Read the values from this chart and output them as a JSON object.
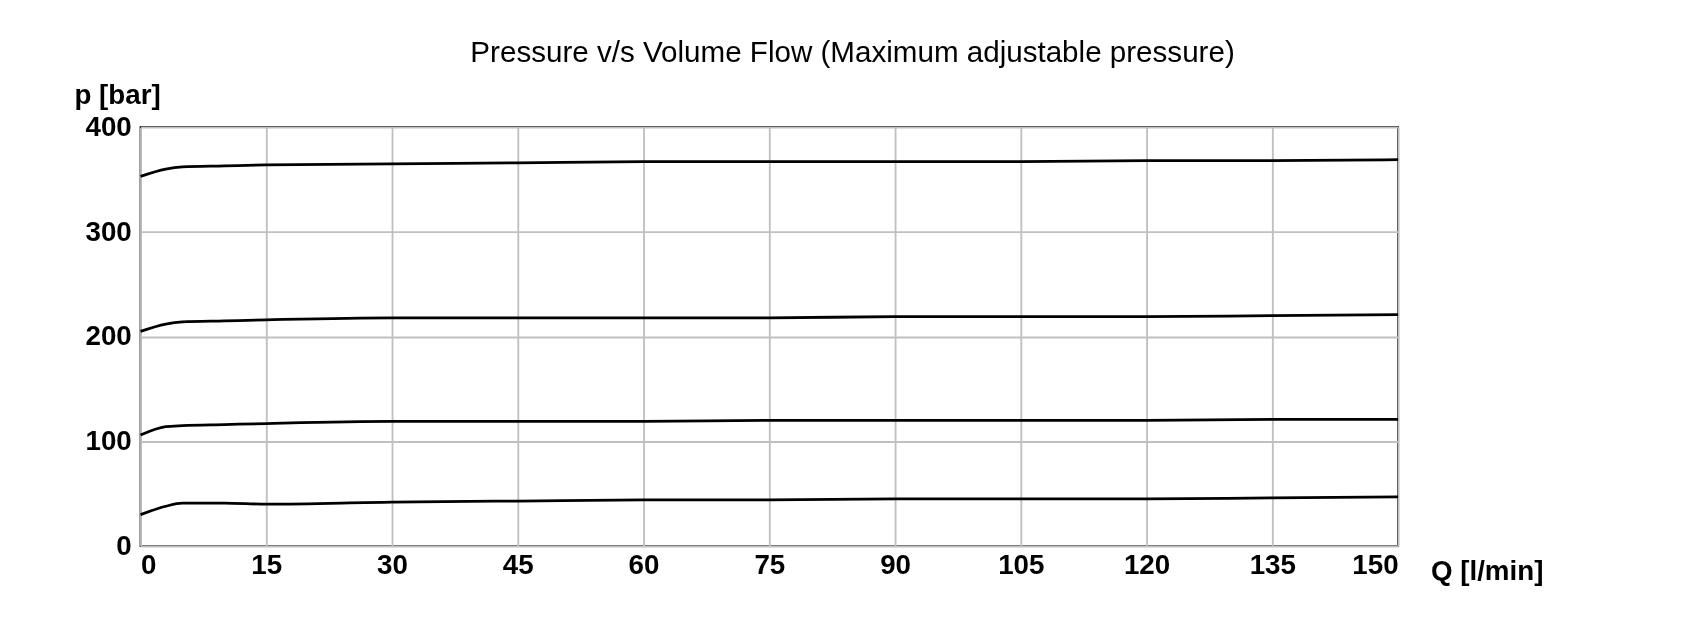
{
  "chart_data": {
    "type": "line",
    "title": "Pressure v/s Volume Flow (Maximum adjustable pressure)",
    "xlabel": "Q [l/min]",
    "ylabel": "p [bar]",
    "x": [
      0,
      3,
      5,
      10,
      15,
      30,
      45,
      60,
      75,
      90,
      105,
      120,
      135,
      150
    ],
    "series": [
      {
        "color": "#000000",
        "values": [
          353,
          360,
          362,
          363,
          364,
          365,
          366,
          367,
          367,
          367,
          367,
          368,
          368,
          369
        ]
      },
      {
        "color": "#000000",
        "values": [
          205,
          212,
          214,
          215,
          216,
          218,
          218,
          218,
          218,
          219,
          219,
          219,
          220,
          221
        ]
      },
      {
        "color": "#000000",
        "values": [
          106,
          114,
          115,
          116,
          117,
          119,
          119,
          119,
          120,
          120,
          120,
          120,
          121,
          121
        ]
      },
      {
        "color": "#000000",
        "values": [
          30,
          38,
          41,
          41,
          40,
          42,
          43,
          44,
          44,
          45,
          45,
          45,
          46,
          47
        ]
      }
    ],
    "xlim": [
      0,
      150
    ],
    "ylim": [
      0,
      400
    ],
    "xticks": [
      0,
      15,
      30,
      45,
      60,
      75,
      90,
      105,
      120,
      135,
      150
    ],
    "yticks": [
      0,
      100,
      200,
      300,
      400
    ],
    "grid": true,
    "marker": "none",
    "line_style": "solid",
    "legend": false
  }
}
